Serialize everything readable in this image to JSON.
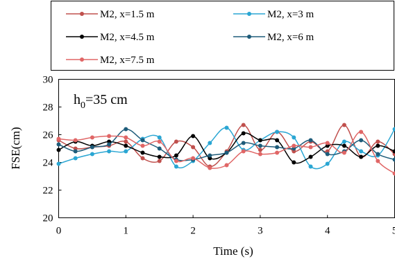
{
  "chart_data": {
    "type": "line",
    "xlabel": "Time (s)",
    "ylabel": "FSE(cm)",
    "xlim": [
      0,
      5
    ],
    "ylim": [
      20,
      30
    ],
    "x_ticks": [
      "0",
      "1",
      "2",
      "3",
      "4",
      "5"
    ],
    "y_ticks": [
      "20",
      "22",
      "24",
      "26",
      "28",
      "30"
    ],
    "annotation": {
      "main": "h",
      "sub": "0",
      "rest": "=35 cm"
    },
    "legend_placement": "top",
    "grid": false,
    "x": [
      0,
      0.25,
      0.5,
      0.75,
      1.0,
      1.25,
      1.5,
      1.75,
      2.0,
      2.25,
      2.5,
      2.75,
      3.0,
      3.25,
      3.5,
      3.75,
      4.0,
      4.25,
      4.5,
      4.75,
      5.0
    ],
    "series": [
      {
        "name": "M2, x=1.5 m",
        "color": "#c0504d",
        "values": [
          25.6,
          25.0,
          25.1,
          25.2,
          25.5,
          24.3,
          24.1,
          25.5,
          25.1,
          23.7,
          24.8,
          26.7,
          24.9,
          26.2,
          24.8,
          25.5,
          24.8,
          26.7,
          24.4,
          25.5,
          24.6
        ]
      },
      {
        "name": "M2, x=3 m",
        "color": "#2aa6d3",
        "values": [
          23.9,
          24.3,
          24.6,
          24.8,
          24.8,
          25.7,
          25.8,
          23.7,
          24.1,
          25.4,
          26.5,
          24.9,
          25.6,
          26.2,
          25.8,
          23.7,
          23.9,
          25.5,
          24.8,
          24.5,
          26.4
        ]
      },
      {
        "name": "M2, x=4.5 m",
        "color": "#000000",
        "values": [
          24.9,
          25.5,
          25.2,
          25.5,
          25.2,
          24.7,
          24.4,
          24.5,
          25.9,
          24.3,
          24.7,
          26.1,
          25.6,
          25.6,
          24.0,
          24.4,
          25.2,
          25.2,
          24.4,
          25.2,
          24.8
        ]
      },
      {
        "name": "M2, x=6 m",
        "color": "#1e5c7a",
        "values": [
          25.3,
          24.8,
          25.1,
          25.3,
          26.4,
          25.6,
          25.0,
          24.2,
          24.2,
          24.5,
          24.7,
          25.4,
          25.2,
          25.1,
          25.0,
          25.6,
          24.6,
          24.8,
          25.6,
          24.6,
          24.2
        ]
      },
      {
        "name": "M2, x=7.5 m",
        "color": "#e06666",
        "values": [
          25.7,
          25.6,
          25.8,
          25.9,
          25.8,
          25.2,
          25.5,
          24.1,
          24.3,
          23.6,
          23.8,
          24.8,
          24.6,
          24.7,
          25.2,
          25.1,
          25.4,
          24.7,
          26.2,
          24.1,
          23.2
        ]
      }
    ]
  }
}
